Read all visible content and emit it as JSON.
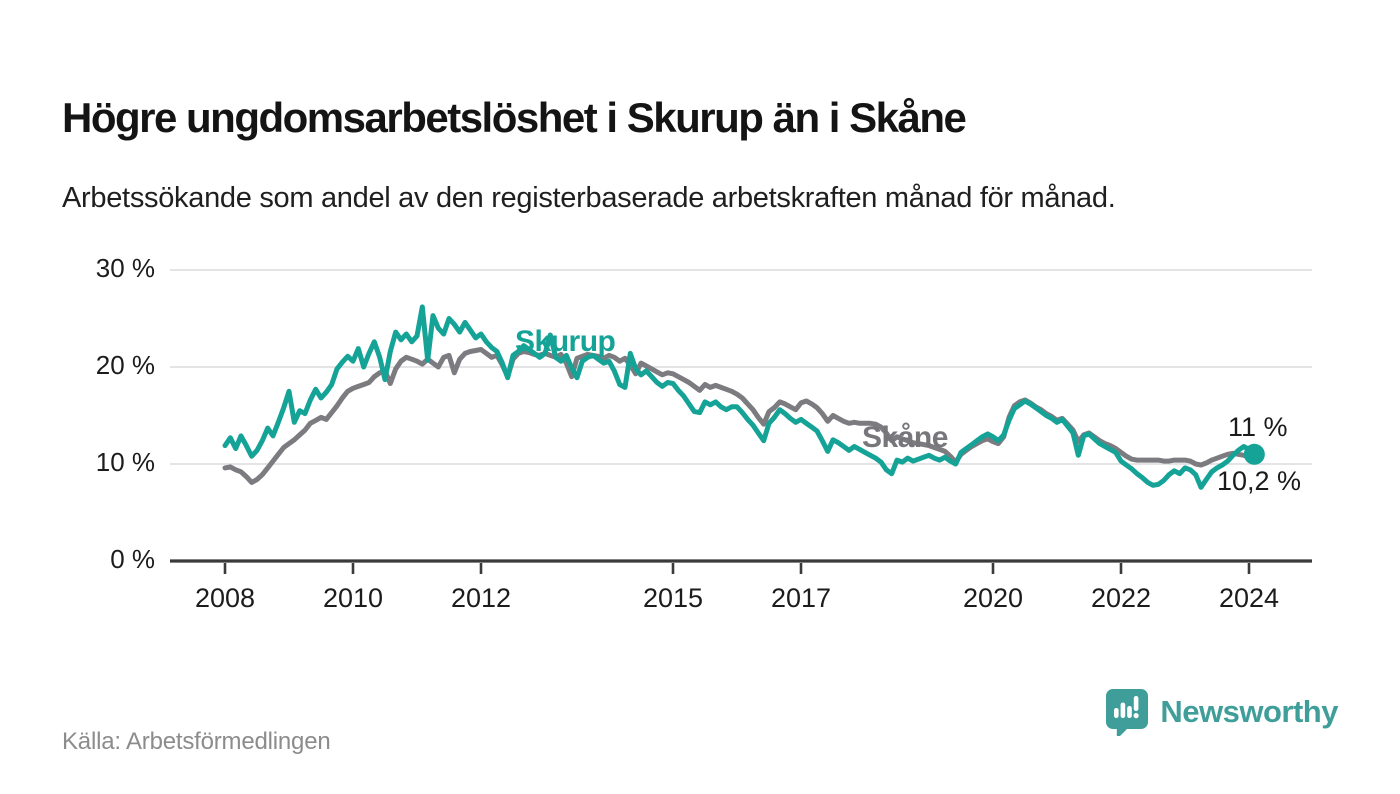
{
  "header": {
    "title": "Högre ungdomsarbetslöshet i Skurup än i Skåne",
    "subtitle": "Arbetssökande som andel av den registerbaserade arbetskraften månad för månad."
  },
  "footer": {
    "source": "Källa: Arbetsförmedlingen",
    "brand": "Newsworthy"
  },
  "colors": {
    "skurup": "#14A396",
    "skane": "#7B7B80",
    "skane_label": "#76767B",
    "grid": "#DCDCDE",
    "axis": "#3A3A3A",
    "tick_text": "#1C1C1C",
    "end_label_text": "#1B1B1B",
    "brand_teal": "#3F9E99"
  },
  "chart_data": {
    "type": "line",
    "title": "Högre ungdomsarbetslöshet i Skurup än i Skåne",
    "subtitle": "Arbetssökande som andel av den registerbaserade arbetskraften månad för månad.",
    "x_monthly_start": "2008-01",
    "x_monthly_end": "2024-02",
    "xlabel": "",
    "ylabel": "",
    "ylim": [
      0,
      30
    ],
    "grid": "horizontal",
    "legend_position": "inline-labels",
    "y_ticks": [
      {
        "value": 0,
        "label": "0 %"
      },
      {
        "value": 10,
        "label": "10 %"
      },
      {
        "value": 20,
        "label": "20 %"
      },
      {
        "value": 30,
        "label": "30 %"
      }
    ],
    "x_ticks": [
      {
        "year": 2008,
        "label": "2008"
      },
      {
        "year": 2010,
        "label": "2010"
      },
      {
        "year": 2012,
        "label": "2012"
      },
      {
        "year": 2015,
        "label": "2015"
      },
      {
        "year": 2017,
        "label": "2017"
      },
      {
        "year": 2020,
        "label": "2020"
      },
      {
        "year": 2022,
        "label": "2022"
      },
      {
        "year": 2024,
        "label": "2024"
      }
    ],
    "annotations": {
      "skurup_label": "Skurup",
      "skane_label": "Skåne",
      "end_value_skurup": "11 %",
      "end_value_skane": "10,2 %"
    },
    "series": [
      {
        "name": "Skåne",
        "color": "#7B7B80",
        "values": [
          9.6,
          9.7,
          9.4,
          9.2,
          8.7,
          8.1,
          8.4,
          8.9,
          9.6,
          10.3,
          11.0,
          11.7,
          12.1,
          12.5,
          13.0,
          13.5,
          14.2,
          14.5,
          14.8,
          14.6,
          15.3,
          16.0,
          16.8,
          17.5,
          17.8,
          18.0,
          18.2,
          18.4,
          19.0,
          19.4,
          19.6,
          18.3,
          19.8,
          20.6,
          21.0,
          20.8,
          20.6,
          20.3,
          20.8,
          20.4,
          20.0,
          21.0,
          21.2,
          19.4,
          20.8,
          21.4,
          21.6,
          21.7,
          21.8,
          21.4,
          21.0,
          21.2,
          20.2,
          19.0,
          20.8,
          21.4,
          21.6,
          21.5,
          21.3,
          21.2,
          21.4,
          21.2,
          21.0,
          21.3,
          20.4,
          19.0,
          20.9,
          21.1,
          21.3,
          21.2,
          21.1,
          20.9,
          21.2,
          21.0,
          20.6,
          20.9,
          20.2,
          19.3,
          20.4,
          20.1,
          19.8,
          19.5,
          19.2,
          19.4,
          19.3,
          19.0,
          18.7,
          18.4,
          18.0,
          17.6,
          18.2,
          17.9,
          18.1,
          17.9,
          17.7,
          17.5,
          17.2,
          16.8,
          16.2,
          15.6,
          14.8,
          14.1,
          15.4,
          15.8,
          16.4,
          16.2,
          15.9,
          15.6,
          16.3,
          16.5,
          16.2,
          15.8,
          15.2,
          14.4,
          15.0,
          14.7,
          14.4,
          14.2,
          14.3,
          14.2,
          14.2,
          14.2,
          14.1,
          13.8,
          13.2,
          12.4,
          12.8,
          12.6,
          12.4,
          12.2,
          12.1,
          12.0,
          11.9,
          11.7,
          11.5,
          11.3,
          10.8,
          10.2,
          11.0,
          11.4,
          11.8,
          12.1,
          12.4,
          12.6,
          12.3,
          12.1,
          12.8,
          14.8,
          16.0,
          16.4,
          16.6,
          16.3,
          15.9,
          15.6,
          15.2,
          14.9,
          14.5,
          14.7,
          14.1,
          13.5,
          12.3,
          13.0,
          13.2,
          12.8,
          12.4,
          12.1,
          11.9,
          11.6,
          11.2,
          10.8,
          10.5,
          10.4,
          10.4,
          10.4,
          10.4,
          10.4,
          10.3,
          10.3,
          10.4,
          10.4,
          10.4,
          10.3,
          10.0,
          9.9,
          10.1,
          10.4,
          10.6,
          10.8,
          11.0,
          11.1,
          11.0,
          10.9,
          10.7,
          10.2
        ]
      },
      {
        "name": "Skurup",
        "color": "#14A396",
        "values": [
          11.9,
          12.7,
          11.6,
          12.9,
          11.9,
          10.8,
          11.4,
          12.4,
          13.7,
          12.9,
          14.3,
          15.8,
          17.5,
          14.3,
          15.5,
          15.2,
          16.6,
          17.7,
          16.8,
          17.4,
          18.2,
          19.8,
          20.5,
          21.1,
          20.6,
          21.9,
          20.0,
          21.4,
          22.6,
          21.0,
          18.7,
          21.6,
          23.6,
          22.8,
          23.4,
          22.6,
          23.2,
          26.2,
          20.7,
          25.3,
          24.0,
          23.4,
          25.0,
          24.4,
          23.6,
          24.6,
          23.8,
          23.0,
          23.4,
          22.6,
          22.0,
          21.6,
          20.4,
          18.9,
          21.2,
          21.6,
          22.2,
          21.8,
          21.4,
          21.0,
          21.4,
          23.3,
          21.0,
          20.6,
          21.2,
          19.9,
          18.9,
          20.6,
          21.0,
          21.2,
          20.8,
          20.4,
          20.6,
          19.6,
          18.2,
          17.9,
          21.4,
          19.8,
          19.2,
          19.6,
          19.0,
          18.4,
          18.0,
          18.4,
          18.3,
          17.6,
          17.0,
          16.2,
          15.4,
          15.3,
          16.4,
          16.1,
          16.4,
          15.9,
          15.6,
          15.9,
          15.9,
          15.3,
          14.6,
          14.0,
          13.2,
          12.4,
          14.2,
          14.8,
          15.6,
          15.2,
          14.7,
          14.3,
          14.6,
          14.2,
          13.8,
          13.4,
          12.4,
          11.3,
          12.5,
          12.2,
          11.8,
          11.4,
          11.8,
          11.5,
          11.2,
          10.9,
          10.6,
          10.2,
          9.4,
          9.0,
          10.4,
          10.2,
          10.6,
          10.3,
          10.5,
          10.7,
          10.9,
          10.6,
          10.4,
          10.7,
          10.3,
          10.0,
          11.2,
          11.6,
          12.0,
          12.4,
          12.8,
          13.1,
          12.8,
          12.4,
          13.0,
          14.5,
          15.7,
          16.1,
          16.5,
          16.2,
          15.8,
          15.4,
          15.0,
          14.7,
          14.3,
          14.6,
          13.9,
          13.2,
          10.9,
          12.9,
          13.1,
          12.6,
          12.1,
          11.8,
          11.5,
          11.2,
          10.3,
          9.9,
          9.5,
          9.0,
          8.6,
          8.1,
          7.8,
          7.9,
          8.3,
          8.9,
          9.3,
          9.0,
          9.6,
          9.4,
          8.9,
          7.6,
          8.4,
          9.2,
          9.6,
          9.9,
          10.3,
          10.9,
          11.4,
          11.8,
          11.5,
          11.0
        ]
      }
    ]
  }
}
